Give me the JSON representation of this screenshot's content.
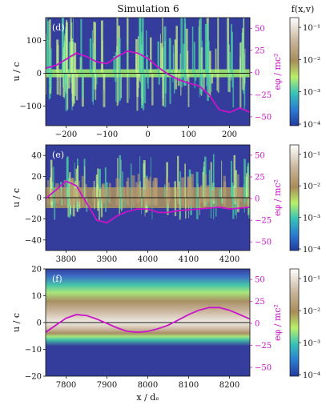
{
  "figure": {
    "title": "Simulation 6",
    "cbar_title": "f(x,v)"
  },
  "colors": {
    "background": "#343d9b",
    "potential": "#c914c9",
    "axis_right": "#c914c9",
    "zero_line": "#111111"
  },
  "chart_data": [
    {
      "type": "heatmap",
      "panel_label": "(d)",
      "xlabel": "",
      "ylabel": "u / c",
      "ylabel_right": "eφ / mc²",
      "xlim": [
        -250,
        250
      ],
      "ylim": [
        -160,
        170
      ],
      "ylim_right": [
        -60,
        62
      ],
      "xticks": [
        -200,
        -100,
        0,
        100,
        200
      ],
      "yticks": [
        -100,
        0,
        100
      ],
      "yticks_right": [
        -50,
        -25,
        0,
        25,
        50
      ],
      "cbar_ticks": [
        "10⁻⁴",
        "10⁻³",
        "10⁻²",
        "10⁻¹"
      ],
      "potential": {
        "x": [
          -250,
          -225,
          -200,
          -175,
          -150,
          -125,
          -100,
          -75,
          -50,
          -25,
          0,
          25,
          50,
          75,
          100,
          125,
          150,
          175,
          200,
          225,
          250
        ],
        "y": [
          5,
          8,
          15,
          22,
          18,
          12,
          10,
          18,
          24,
          22,
          16,
          6,
          -2,
          -8,
          -12,
          -15,
          -25,
          -42,
          -45,
          -40,
          -45
        ]
      }
    },
    {
      "type": "heatmap",
      "panel_label": "(e)",
      "xlabel": "",
      "ylabel": "u / c",
      "ylabel_right": "eφ / mc²",
      "xlim": [
        3750,
        4250
      ],
      "ylim": [
        -50,
        50
      ],
      "ylim_right": [
        -60,
        62
      ],
      "xticks": [
        3800,
        3900,
        4000,
        4100,
        4200
      ],
      "yticks": [
        -40,
        -20,
        0,
        20,
        40
      ],
      "yticks_right": [
        -50,
        -25,
        0,
        25,
        50
      ],
      "cbar_ticks": [
        "10⁻⁴",
        "10⁻³",
        "10⁻²",
        "10⁻¹"
      ],
      "potential": {
        "x": [
          3750,
          3775,
          3800,
          3825,
          3850,
          3875,
          3900,
          3925,
          3950,
          3975,
          4000,
          4025,
          4050,
          4075,
          4100,
          4125,
          4150,
          4175,
          4200,
          4225,
          4250
        ],
        "y": [
          0,
          10,
          20,
          15,
          -5,
          -25,
          -28,
          -20,
          -15,
          -12,
          -12,
          -16,
          -16,
          -14,
          -13,
          -12,
          -11,
          -10,
          -12,
          -11,
          -10
        ]
      }
    },
    {
      "type": "heatmap",
      "panel_label": "(f)",
      "xlabel": "x / dₑ",
      "ylabel": "u / c",
      "ylabel_right": "eφ / mc²",
      "xlim": [
        3750,
        4250
      ],
      "ylim": [
        -20,
        20
      ],
      "ylim_right": [
        -60,
        62
      ],
      "xticks_display": [
        7800,
        7900,
        8000,
        8100,
        8200
      ],
      "xlim_display": [
        7750,
        8250
      ],
      "yticks": [
        -20,
        -10,
        0,
        10,
        20
      ],
      "yticks_right": [
        -50,
        -25,
        0,
        25,
        50
      ],
      "cbar_ticks": [
        "10⁻⁴",
        "10⁻³",
        "10⁻²",
        "10⁻¹"
      ],
      "potential": {
        "x": [
          7750,
          7775,
          7800,
          7825,
          7850,
          7875,
          7900,
          7925,
          7950,
          7975,
          8000,
          8025,
          8050,
          8075,
          8100,
          8125,
          8150,
          8175,
          8200,
          8225,
          8250
        ],
        "y": [
          -10,
          -2,
          6,
          10,
          9,
          5,
          0,
          -5,
          -9,
          -10,
          -9,
          -6,
          -2,
          4,
          10,
          15,
          18,
          18,
          15,
          10,
          5
        ]
      }
    }
  ]
}
